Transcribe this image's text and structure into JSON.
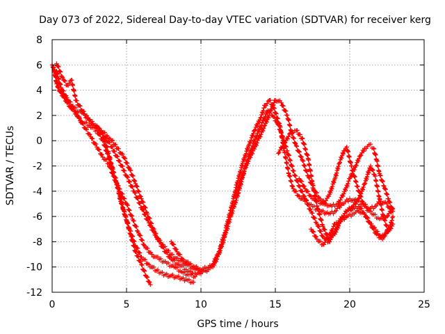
{
  "chart_data": {
    "type": "scatter",
    "title": "Day 073 of 2022, Sidereal Day-to-day VTEC variation (SDTVAR) for receiver kerg",
    "xlabel": "GPS time / hours",
    "ylabel": "SDTVAR / TECUs",
    "xlim": [
      0,
      25
    ],
    "ylim": [
      -12,
      8
    ],
    "xticks": [
      0,
      5,
      10,
      15,
      20,
      25
    ],
    "yticks": [
      -12,
      -10,
      -8,
      -6,
      -4,
      -2,
      0,
      2,
      4,
      6,
      8
    ],
    "grid": true,
    "legend": "none",
    "marker": "+",
    "colors": {
      "series": "#ff0000",
      "grid": "#a0a0a0",
      "axis": "#000000"
    },
    "series": [
      {
        "name": "trace-1",
        "x": [
          0.0,
          0.2,
          0.4,
          0.7,
          1.0,
          1.3,
          1.7,
          2.0,
          2.5,
          3.0,
          3.4,
          3.7,
          4.0,
          4.3,
          4.6,
          5.0,
          5.3,
          5.6,
          6.0,
          6.3,
          6.6
        ],
        "y": [
          6.0,
          5.3,
          4.2,
          3.7,
          3.1,
          2.5,
          2.0,
          1.5,
          1.2,
          0.8,
          0.0,
          -1.0,
          -2.0,
          -3.2,
          -4.8,
          -6.3,
          -7.6,
          -8.8,
          -9.8,
          -10.7,
          -11.4
        ]
      },
      {
        "name": "trace-2",
        "x": [
          0.1,
          0.3,
          0.6,
          1.0,
          1.5,
          2.0,
          2.5,
          3.0,
          3.5,
          3.8,
          4.1,
          4.5,
          4.8,
          5.2,
          5.6,
          6.0,
          6.5,
          7.0,
          7.6,
          8.3,
          9.0,
          9.5
        ],
        "y": [
          5.8,
          4.5,
          3.8,
          3.0,
          2.6,
          2.2,
          1.6,
          1.2,
          0.2,
          -1.0,
          -2.5,
          -4.0,
          -5.5,
          -7.0,
          -8.3,
          -9.2,
          -9.8,
          -10.3,
          -10.6,
          -10.8,
          -11.0,
          -11.2
        ]
      },
      {
        "name": "trace-3",
        "x": [
          0.3,
          0.6,
          1.0,
          1.4,
          1.8,
          2.2,
          2.6,
          3.0,
          3.4,
          3.8,
          4.1,
          4.5,
          5.0,
          5.4,
          5.8,
          6.2,
          6.7,
          7.2,
          7.7,
          8.2,
          8.7,
          9.2,
          9.6
        ],
        "y": [
          5.5,
          4.2,
          3.4,
          2.6,
          1.8,
          1.0,
          0.3,
          -0.5,
          -1.3,
          -1.8,
          -2.8,
          -3.8,
          -5.0,
          -6.2,
          -7.3,
          -8.3,
          -9.0,
          -9.4,
          -9.7,
          -10.0,
          -10.4,
          -10.6,
          -10.5
        ]
      },
      {
        "name": "trace-4",
        "x": [
          0.3,
          0.7,
          1.0,
          1.3,
          1.6,
          2.0,
          2.4,
          2.8,
          3.2,
          3.6,
          4.0,
          4.5,
          5.0,
          5.5,
          6.0,
          6.5,
          7.0,
          7.5,
          8.0,
          8.5,
          9.0,
          9.5,
          10.0
        ],
        "y": [
          6.1,
          5.0,
          4.4,
          4.8,
          3.2,
          2.4,
          1.8,
          1.2,
          0.8,
          0.2,
          -0.5,
          -1.6,
          -2.8,
          -4.0,
          -5.3,
          -6.5,
          -7.6,
          -8.4,
          -9.0,
          -9.5,
          -9.8,
          -10.1,
          -10.3
        ]
      },
      {
        "name": "trace-5",
        "x": [
          3.0,
          3.3,
          3.7,
          4.0,
          4.4,
          4.8,
          5.2,
          5.6,
          6.0,
          6.4,
          6.8,
          7.2,
          7.6,
          8.0,
          8.5,
          9.0,
          9.4
        ],
        "y": [
          1.0,
          0.8,
          0.4,
          0.0,
          -0.6,
          -1.3,
          -2.2,
          -3.4,
          -4.6,
          -5.8,
          -7.0,
          -8.0,
          -8.8,
          -9.4,
          -9.8,
          -10.2,
          -10.5
        ]
      },
      {
        "name": "trace-6",
        "x": [
          8.0,
          8.4,
          8.8,
          9.2,
          9.6,
          10.0,
          10.4,
          10.8,
          11.2,
          11.6,
          12.0,
          12.4,
          12.8,
          13.2,
          13.6,
          14.0,
          14.3,
          14.6,
          14.9,
          15.3,
          15.6,
          15.9,
          16.2,
          16.6,
          17.0,
          17.5,
          18.0,
          18.6,
          19.0,
          19.5,
          20.0,
          20.5,
          21.0,
          21.5,
          22.0,
          22.5,
          22.9
        ],
        "y": [
          -8.0,
          -8.8,
          -9.4,
          -9.8,
          -10.0,
          -10.2,
          -10.1,
          -9.8,
          -8.8,
          -7.3,
          -5.5,
          -3.5,
          -1.8,
          -0.4,
          0.8,
          1.8,
          2.8,
          3.2,
          2.6,
          1.2,
          -0.8,
          -2.6,
          -3.8,
          -4.4,
          -4.8,
          -5.2,
          -5.6,
          -5.8,
          -5.6,
          -5.0,
          -4.6,
          -4.8,
          -5.2,
          -5.8,
          -6.2,
          -6.0,
          -5.4
        ]
      },
      {
        "name": "trace-7",
        "x": [
          9.5,
          9.9,
          10.3,
          10.8,
          11.2,
          11.6,
          12.0,
          12.5,
          13.0,
          13.4,
          13.8,
          14.2,
          14.5,
          14.8,
          15.1,
          15.4,
          15.8,
          16.2,
          16.6,
          17.0,
          17.4,
          17.8,
          18.2,
          18.6,
          19.0,
          19.4,
          19.8,
          20.2,
          20.6,
          21.0,
          21.4,
          21.7,
          22.0,
          22.3,
          22.6,
          22.9
        ],
        "y": [
          -10.8,
          -10.5,
          -10.3,
          -10.0,
          -9.0,
          -7.6,
          -6.0,
          -4.2,
          -2.0,
          -0.6,
          0.6,
          1.6,
          2.4,
          2.0,
          1.5,
          0.6,
          -0.8,
          -2.4,
          -3.6,
          -4.6,
          -5.6,
          -6.6,
          -7.6,
          -8.0,
          -7.2,
          -6.2,
          -5.6,
          -5.2,
          -4.6,
          -3.4,
          -2.0,
          -2.8,
          -4.6,
          -6.2,
          -7.2,
          -6.6
        ]
      },
      {
        "name": "trace-8",
        "x": [
          12.3,
          12.7,
          13.1,
          13.5,
          13.9,
          14.3,
          14.7,
          15.0,
          15.4,
          15.8,
          16.1,
          16.4,
          16.8,
          17.2,
          17.6,
          18.0,
          18.4,
          18.8,
          19.2,
          19.6,
          20.0,
          20.4,
          20.7,
          21.0,
          21.3,
          21.6,
          21.8,
          22.0,
          22.3,
          22.6,
          22.9
        ],
        "y": [
          -4.4,
          -3.0,
          -1.8,
          -0.8,
          0.2,
          1.2,
          2.4,
          3.2,
          3.0,
          2.0,
          0.6,
          -0.4,
          -1.5,
          -2.8,
          -3.9,
          -4.6,
          -5.0,
          -5.2,
          -5.0,
          -4.2,
          -3.0,
          -2.0,
          -1.2,
          -0.6,
          -0.3,
          -0.6,
          -1.5,
          -2.6,
          -3.6,
          -4.6,
          -5.6
        ]
      },
      {
        "name": "trace-9",
        "x": [
          15.2,
          15.6,
          16.0,
          16.4,
          16.8,
          17.2,
          17.5,
          17.8,
          18.2,
          18.6,
          19.0,
          19.4,
          19.8,
          20.2,
          20.6,
          21.0,
          21.4,
          21.8,
          22.1,
          22.4,
          22.7,
          22.9
        ],
        "y": [
          -1.0,
          -0.2,
          0.6,
          0.8,
          0.2,
          -1.4,
          -3.4,
          -5.2,
          -6.8,
          -7.8,
          -7.4,
          -6.2,
          -5.6,
          -5.4,
          -5.2,
          -5.8,
          -6.6,
          -7.2,
          -7.6,
          -7.4,
          -6.8,
          -6.0
        ]
      },
      {
        "name": "trace-10",
        "x": [
          16.6,
          17.0,
          17.4,
          17.8,
          18.2,
          18.6,
          19.0,
          19.3,
          19.6,
          19.8,
          20.1,
          20.5,
          20.9,
          21.3,
          21.7,
          22.1,
          22.5,
          22.8
        ],
        "y": [
          -3.0,
          -3.8,
          -4.4,
          -4.8,
          -5.0,
          -4.4,
          -3.0,
          -1.8,
          -0.8,
          -0.5,
          -2.0,
          -3.6,
          -5.0,
          -5.4,
          -5.2,
          -4.8,
          -5.0,
          -5.6
        ]
      },
      {
        "name": "trace-11",
        "x": [
          17.4,
          17.8,
          18.2,
          18.6,
          19.0,
          19.4,
          19.8,
          20.2,
          20.6,
          21.0,
          21.4,
          21.8,
          22.2,
          22.6
        ],
        "y": [
          -7.0,
          -7.8,
          -8.2,
          -7.6,
          -6.6,
          -6.4,
          -6.0,
          -5.8,
          -5.6,
          -5.8,
          -6.6,
          -7.4,
          -7.8,
          -7.0
        ]
      }
    ]
  }
}
